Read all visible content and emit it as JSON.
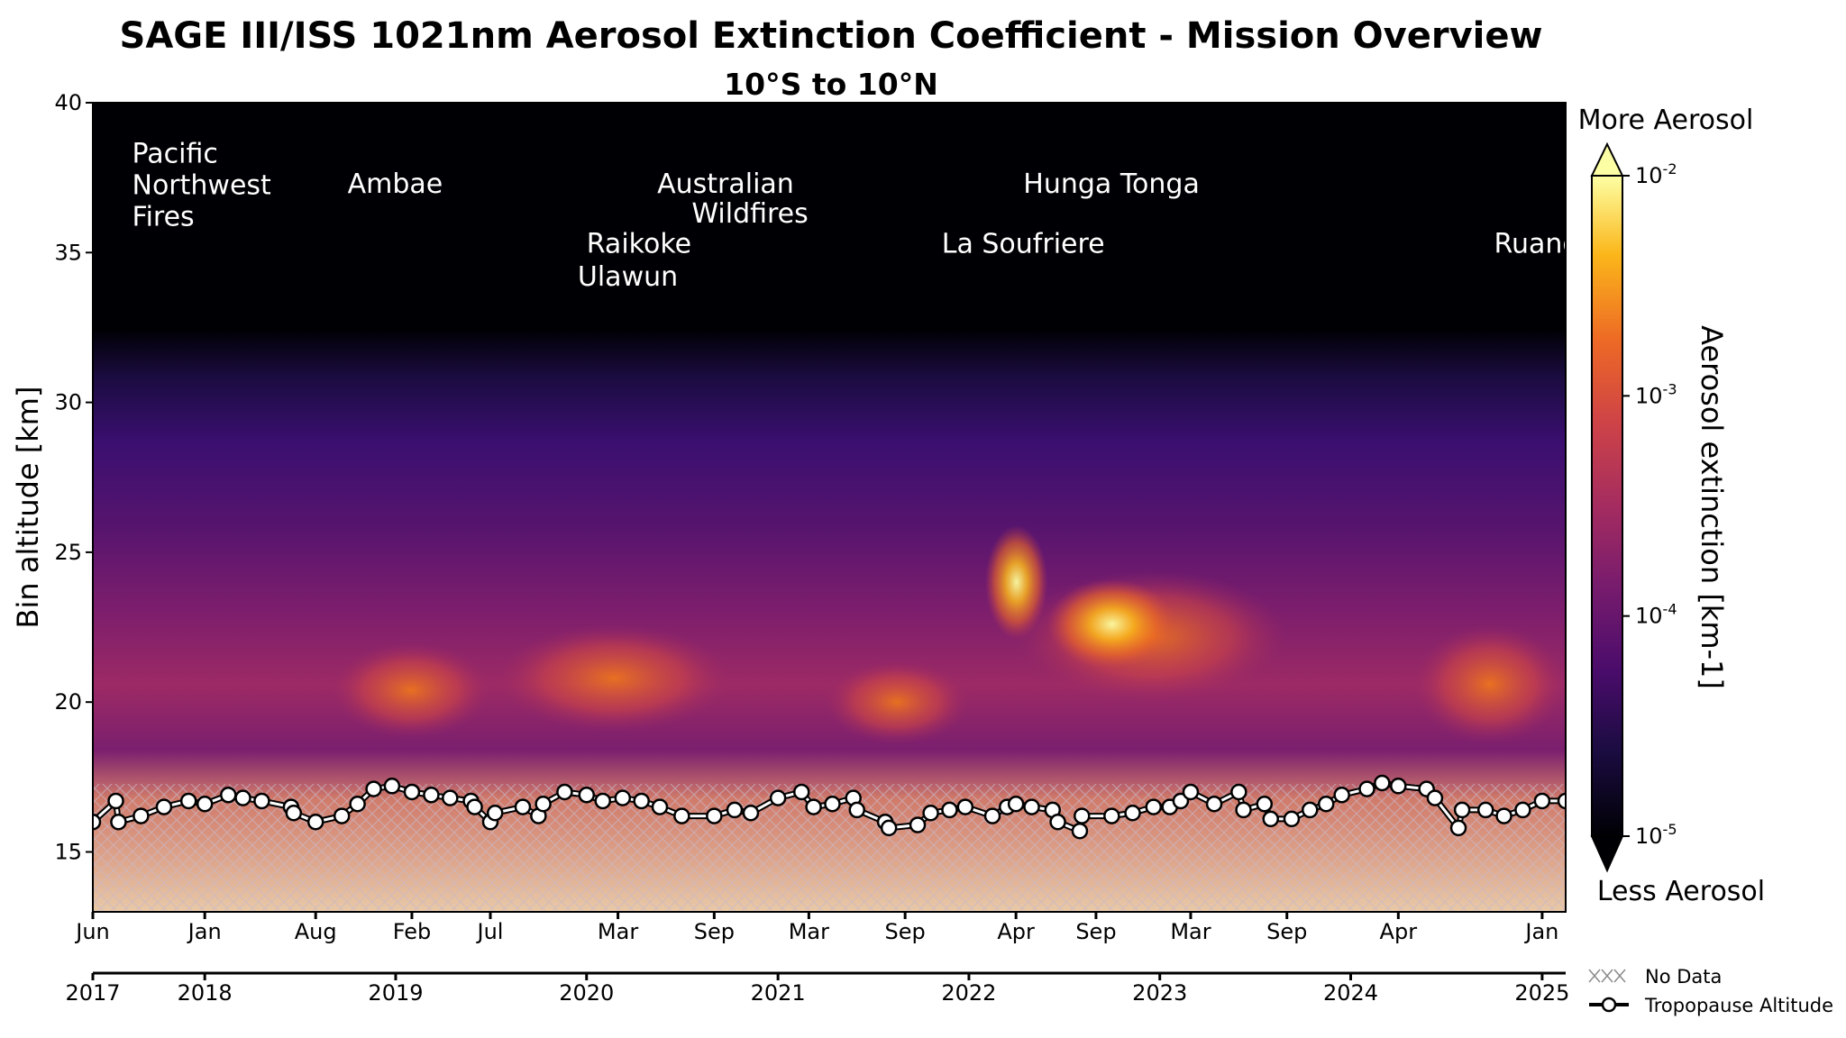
{
  "chart_data": {
    "type": "heatmap",
    "title": "SAGE III/ISS 1021nm Aerosol Extinction Coefficient - Mission Overview",
    "subtitle": "10°S to 10°N",
    "ylabel": "Bin altitude [km]",
    "ylim": [
      13,
      40
    ],
    "yticks": [
      15,
      20,
      25,
      30,
      35,
      40
    ],
    "xlim": [
      "2017-06-01",
      "2025-02-15"
    ],
    "month_ticks": [
      {
        "date": "2017-06-01",
        "label": "Jun"
      },
      {
        "date": "2018-01-01",
        "label": "Jan"
      },
      {
        "date": "2018-08-01",
        "label": "Aug"
      },
      {
        "date": "2019-02-01",
        "label": "Feb"
      },
      {
        "date": "2019-07-01",
        "label": "Jul"
      },
      {
        "date": "2020-03-01",
        "label": "Mar"
      },
      {
        "date": "2020-09-01",
        "label": "Sep"
      },
      {
        "date": "2021-03-01",
        "label": "Mar"
      },
      {
        "date": "2021-09-01",
        "label": "Sep"
      },
      {
        "date": "2022-04-01",
        "label": "Apr"
      },
      {
        "date": "2022-09-01",
        "label": "Sep"
      },
      {
        "date": "2023-03-01",
        "label": "Mar"
      },
      {
        "date": "2023-09-01",
        "label": "Sep"
      },
      {
        "date": "2024-04-01",
        "label": "Apr"
      },
      {
        "date": "2025-01-01",
        "label": "Jan"
      }
    ],
    "year_ticks": [
      {
        "date": "2017-06-01",
        "label": "2017"
      },
      {
        "date": "2018-01-01",
        "label": "2018"
      },
      {
        "date": "2019-01-01",
        "label": "2019"
      },
      {
        "date": "2020-01-01",
        "label": "2020"
      },
      {
        "date": "2021-01-01",
        "label": "2021"
      },
      {
        "date": "2022-01-01",
        "label": "2022"
      },
      {
        "date": "2023-01-01",
        "label": "2023"
      },
      {
        "date": "2024-01-01",
        "label": "2024"
      },
      {
        "date": "2025-01-01",
        "label": "2025"
      }
    ],
    "colorbar": {
      "label": "Aerosol extinction [km-1]",
      "scale": "log",
      "range": [
        1e-05,
        0.01
      ],
      "ticks": [
        {
          "base": "10",
          "exp": "-2"
        },
        {
          "base": "10",
          "exp": "-3"
        },
        {
          "base": "10",
          "exp": "-4"
        },
        {
          "base": "10",
          "exp": "-5"
        }
      ],
      "top_label": "More Aerosol",
      "bottom_label": "Less Aerosol"
    },
    "annotations": [
      {
        "lines": [
          "Pacific",
          "Northwest",
          "Fires"
        ],
        "date": "2017-08-15",
        "altitude": 38.0
      },
      {
        "lines": [
          "Ambae"
        ],
        "date": "2018-10-01",
        "altitude": 37.0
      },
      {
        "lines": [
          "Australian"
        ],
        "date": "2020-05-15",
        "altitude": 37.0
      },
      {
        "lines": [
          "Wildfires"
        ],
        "date": "2020-07-20",
        "altitude": 36.0
      },
      {
        "lines": [
          "Raikoke"
        ],
        "date": "2020-01-01",
        "altitude": 35.0
      },
      {
        "lines": [
          "Ulawun"
        ],
        "date": "2019-12-15",
        "altitude": 33.9
      },
      {
        "lines": [
          "Hunga Tonga"
        ],
        "date": "2022-04-15",
        "altitude": 37.0
      },
      {
        "lines": [
          "La Soufriere"
        ],
        "date": "2021-11-10",
        "altitude": 35.0
      },
      {
        "lines": [
          "Ruang"
        ],
        "date": "2024-10-01",
        "altitude": 35.0
      }
    ],
    "tropopause_series": {
      "name": "Tropopause Altitude",
      "points": [
        [
          "2017-06-01",
          16.0
        ],
        [
          "2017-07-15",
          16.7
        ],
        [
          "2017-07-20",
          16.0
        ],
        [
          "2017-09-01",
          16.2
        ],
        [
          "2017-10-15",
          16.5
        ],
        [
          "2017-12-01",
          16.7
        ],
        [
          "2018-01-01",
          16.6
        ],
        [
          "2018-02-15",
          16.9
        ],
        [
          "2018-03-15",
          16.8
        ],
        [
          "2018-04-20",
          16.7
        ],
        [
          "2018-06-15",
          16.5
        ],
        [
          "2018-06-20",
          16.3
        ],
        [
          "2018-08-01",
          16.0
        ],
        [
          "2018-09-20",
          16.2
        ],
        [
          "2018-10-20",
          16.6
        ],
        [
          "2018-11-20",
          17.1
        ],
        [
          "2018-12-25",
          17.2
        ],
        [
          "2019-02-01",
          17.0
        ],
        [
          "2019-03-10",
          16.9
        ],
        [
          "2019-04-15",
          16.8
        ],
        [
          "2019-05-25",
          16.7
        ],
        [
          "2019-06-01",
          16.5
        ],
        [
          "2019-07-01",
          16.0
        ],
        [
          "2019-07-10",
          16.3
        ],
        [
          "2019-09-01",
          16.5
        ],
        [
          "2019-10-01",
          16.2
        ],
        [
          "2019-10-10",
          16.6
        ],
        [
          "2019-11-20",
          17.0
        ],
        [
          "2020-01-01",
          16.9
        ],
        [
          "2020-02-01",
          16.7
        ],
        [
          "2020-03-10",
          16.8
        ],
        [
          "2020-04-15",
          16.7
        ],
        [
          "2020-05-20",
          16.5
        ],
        [
          "2020-07-01",
          16.2
        ],
        [
          "2020-09-01",
          16.2
        ],
        [
          "2020-10-10",
          16.4
        ],
        [
          "2020-11-10",
          16.3
        ],
        [
          "2021-01-01",
          16.8
        ],
        [
          "2021-02-15",
          17.0
        ],
        [
          "2021-03-10",
          16.5
        ],
        [
          "2021-04-15",
          16.6
        ],
        [
          "2021-05-25",
          16.8
        ],
        [
          "2021-06-01",
          16.4
        ],
        [
          "2021-07-25",
          16.0
        ],
        [
          "2021-08-01",
          15.8
        ],
        [
          "2021-09-25",
          15.9
        ],
        [
          "2021-10-20",
          16.3
        ],
        [
          "2021-11-25",
          16.4
        ],
        [
          "2021-12-25",
          16.5
        ],
        [
          "2022-02-15",
          16.2
        ],
        [
          "2022-03-15",
          16.5
        ],
        [
          "2022-04-01",
          16.6
        ],
        [
          "2022-05-01",
          16.5
        ],
        [
          "2022-06-10",
          16.4
        ],
        [
          "2022-06-20",
          16.0
        ],
        [
          "2022-08-01",
          15.7
        ],
        [
          "2022-08-05",
          16.2
        ],
        [
          "2022-10-01",
          16.2
        ],
        [
          "2022-11-10",
          16.3
        ],
        [
          "2022-12-20",
          16.5
        ],
        [
          "2023-01-20",
          16.5
        ],
        [
          "2023-02-10",
          16.7
        ],
        [
          "2023-03-01",
          17.0
        ],
        [
          "2023-04-15",
          16.6
        ],
        [
          "2023-06-01",
          17.0
        ],
        [
          "2023-06-10",
          16.4
        ],
        [
          "2023-07-20",
          16.6
        ],
        [
          "2023-08-01",
          16.1
        ],
        [
          "2023-09-10",
          16.1
        ],
        [
          "2023-10-15",
          16.4
        ],
        [
          "2023-11-15",
          16.6
        ],
        [
          "2023-12-15",
          16.9
        ],
        [
          "2024-02-01",
          17.1
        ],
        [
          "2024-03-01",
          17.3
        ],
        [
          "2024-04-01",
          17.2
        ],
        [
          "2024-05-25",
          17.1
        ],
        [
          "2024-06-10",
          16.8
        ],
        [
          "2024-07-25",
          15.8
        ],
        [
          "2024-08-01",
          16.4
        ],
        [
          "2024-09-15",
          16.4
        ],
        [
          "2024-10-20",
          16.2
        ],
        [
          "2024-11-25",
          16.4
        ],
        [
          "2025-01-01",
          16.7
        ],
        [
          "2025-02-15",
          16.7
        ]
      ]
    }
  },
  "legend": [
    {
      "label": "No Data",
      "icon": "hatch-icon"
    },
    {
      "label": "Tropopause Altitude",
      "icon": "line-marker-icon"
    }
  ]
}
